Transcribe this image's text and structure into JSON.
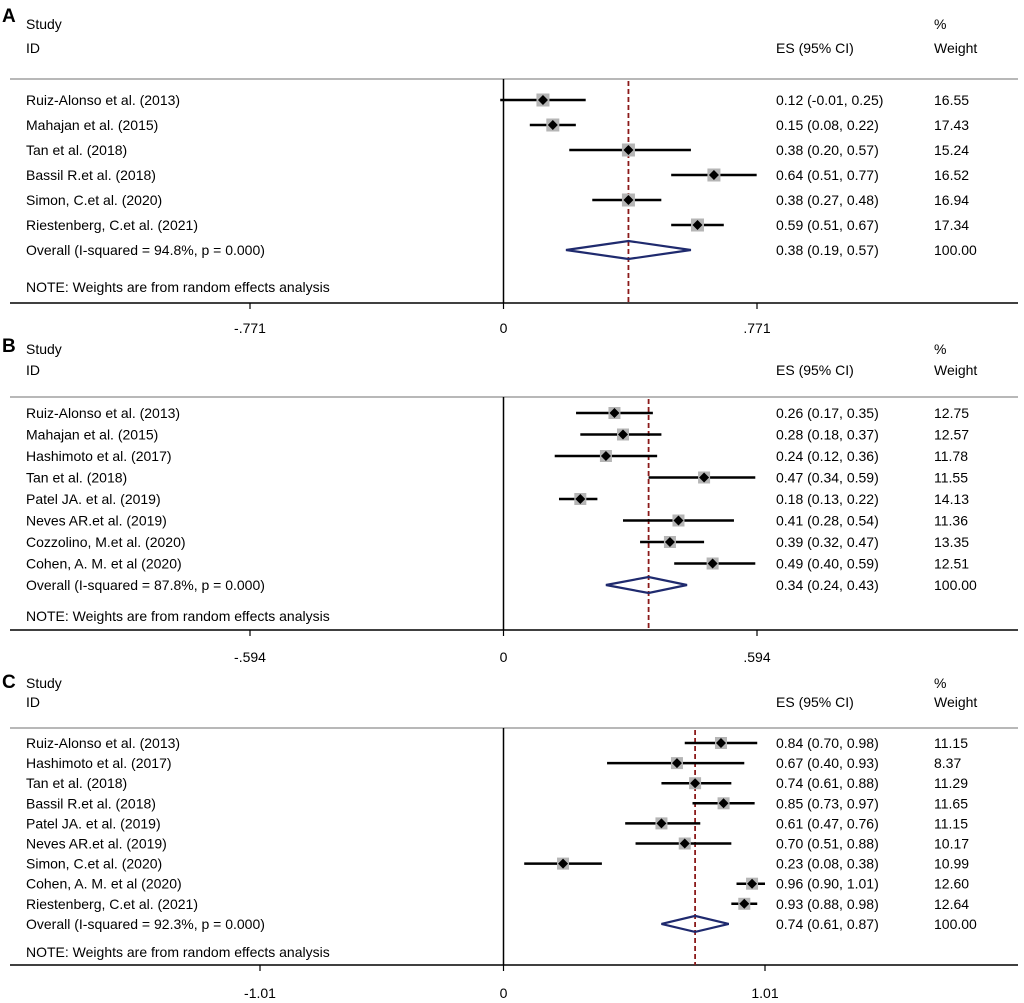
{
  "chart_data": [
    {
      "panel": "A",
      "type": "forest",
      "headers": {
        "study": "Study",
        "id": "ID",
        "es": "ES (95% CI)",
        "pct": "%",
        "weight": "Weight"
      },
      "xlim": [
        -0.771,
        0.771
      ],
      "ticks": [
        {
          "value": -0.771,
          "label": "-.771"
        },
        {
          "value": 0,
          "label": "0"
        },
        {
          "value": 0.771,
          "label": ".771"
        }
      ],
      "overall_line": 0.38,
      "studies": [
        {
          "label": "Ruiz-Alonso et al. (2013)",
          "es": 0.12,
          "lo": -0.01,
          "hi": 0.25,
          "es_text": "0.12 (-0.01, 0.25)",
          "weight": "16.55"
        },
        {
          "label": "Mahajan et al.  (2015)",
          "es": 0.15,
          "lo": 0.08,
          "hi": 0.22,
          "es_text": "0.15 (0.08, 0.22)",
          "weight": "17.43"
        },
        {
          "label": "Tan et al.  (2018)",
          "es": 0.38,
          "lo": 0.2,
          "hi": 0.57,
          "es_text": "0.38 (0.20, 0.57)",
          "weight": "15.24"
        },
        {
          "label": "Bassil R.et al. (2018)",
          "es": 0.64,
          "lo": 0.51,
          "hi": 0.77,
          "es_text": "0.64 (0.51, 0.77)",
          "weight": "16.52"
        },
        {
          "label": "Simon, C.et al. (2020)",
          "es": 0.38,
          "lo": 0.27,
          "hi": 0.48,
          "es_text": "0.38 (0.27, 0.48)",
          "weight": "16.94"
        },
        {
          "label": "Riestenberg, C.et al. (2021)",
          "es": 0.59,
          "lo": 0.51,
          "hi": 0.67,
          "es_text": "0.59 (0.51, 0.67)",
          "weight": "17.34"
        }
      ],
      "overall": {
        "label": "Overall  (I-squared = 94.8%, p = 0.000)",
        "es": 0.38,
        "lo": 0.19,
        "hi": 0.57,
        "es_text": "0.38 (0.19, 0.57)",
        "weight": "100.00"
      },
      "note": "NOTE: Weights are from random effects analysis"
    },
    {
      "panel": "B",
      "type": "forest",
      "headers": {
        "study": "Study",
        "id": "ID",
        "es": "ES (95% CI)",
        "pct": "%",
        "weight": "Weight"
      },
      "xlim": [
        -0.594,
        0.594
      ],
      "ticks": [
        {
          "value": -0.594,
          "label": "-.594"
        },
        {
          "value": 0,
          "label": "0"
        },
        {
          "value": 0.594,
          "label": ".594"
        }
      ],
      "overall_line": 0.34,
      "studies": [
        {
          "label": "Ruiz-Alonso et al. (2013)",
          "es": 0.26,
          "lo": 0.17,
          "hi": 0.35,
          "es_text": "0.26 (0.17, 0.35)",
          "weight": "12.75"
        },
        {
          "label": "Mahajan et al.  (2015)",
          "es": 0.28,
          "lo": 0.18,
          "hi": 0.37,
          "es_text": "0.28 (0.18, 0.37)",
          "weight": "12.57"
        },
        {
          "label": "Hashimoto et al. (2017)",
          "es": 0.24,
          "lo": 0.12,
          "hi": 0.36,
          "es_text": "0.24 (0.12, 0.36)",
          "weight": "11.78"
        },
        {
          "label": "Tan et al. (2018)",
          "es": 0.47,
          "lo": 0.34,
          "hi": 0.59,
          "es_text": "0.47 (0.34, 0.59)",
          "weight": "11.55"
        },
        {
          "label": "Patel JA. et al. (2019)",
          "es": 0.18,
          "lo": 0.13,
          "hi": 0.22,
          "es_text": "0.18 (0.13, 0.22)",
          "weight": "14.13"
        },
        {
          "label": "Neves AR.et al. (2019)",
          "es": 0.41,
          "lo": 0.28,
          "hi": 0.54,
          "es_text": "0.41 (0.28, 0.54)",
          "weight": "11.36"
        },
        {
          "label": "Cozzolino, M.et al. (2020)",
          "es": 0.39,
          "lo": 0.32,
          "hi": 0.47,
          "es_text": "0.39 (0.32, 0.47)",
          "weight": "13.35"
        },
        {
          "label": "Cohen, A. M. et al (2020)",
          "es": 0.49,
          "lo": 0.4,
          "hi": 0.59,
          "es_text": "0.49 (0.40, 0.59)",
          "weight": "12.51"
        }
      ],
      "overall": {
        "label": "Overall  (I-squared = 87.8%, p = 0.000)",
        "es": 0.34,
        "lo": 0.24,
        "hi": 0.43,
        "es_text": "0.34 (0.24, 0.43)",
        "weight": "100.00"
      },
      "note": "NOTE: Weights are from random effects analysis"
    },
    {
      "panel": "C",
      "type": "forest",
      "headers": {
        "study": "Study",
        "id": "ID",
        "es": "ES (95% CI)",
        "pct": "%",
        "weight": "Weight"
      },
      "xlim": [
        -1.01,
        1.01
      ],
      "ticks": [
        {
          "value": -1.01,
          "label": "-1.01"
        },
        {
          "value": 0,
          "label": "0"
        },
        {
          "value": 1.01,
          "label": "1.01"
        }
      ],
      "overall_line": 0.74,
      "studies": [
        {
          "label": "Ruiz-Alonso et al. (2013)",
          "es": 0.84,
          "lo": 0.7,
          "hi": 0.98,
          "es_text": "0.84 (0.70, 0.98)",
          "weight": "11.15"
        },
        {
          "label": "Hashimoto et al. (2017)",
          "es": 0.67,
          "lo": 0.4,
          "hi": 0.93,
          "es_text": "0.67 (0.40, 0.93)",
          "weight": "8.37"
        },
        {
          "label": "Tan et al. (2018)",
          "es": 0.74,
          "lo": 0.61,
          "hi": 0.88,
          "es_text": "0.74 (0.61, 0.88)",
          "weight": "11.29"
        },
        {
          "label": "Bassil R.et al. (2018)",
          "es": 0.85,
          "lo": 0.73,
          "hi": 0.97,
          "es_text": "0.85 (0.73, 0.97)",
          "weight": "11.65"
        },
        {
          "label": "Patel JA. et al. (2019)",
          "es": 0.61,
          "lo": 0.47,
          "hi": 0.76,
          "es_text": "0.61 (0.47, 0.76)",
          "weight": "11.15"
        },
        {
          "label": "Neves AR.et al. (2019)",
          "es": 0.7,
          "lo": 0.51,
          "hi": 0.88,
          "es_text": "0.70 (0.51, 0.88)",
          "weight": "10.17"
        },
        {
          "label": "Simon, C.et al. (2020)",
          "es": 0.23,
          "lo": 0.08,
          "hi": 0.38,
          "es_text": "0.23 (0.08, 0.38)",
          "weight": "10.99"
        },
        {
          "label": "Cohen, A. M. et al (2020)",
          "es": 0.96,
          "lo": 0.9,
          "hi": 1.01,
          "es_text": "0.96 (0.90, 1.01)",
          "weight": "12.60"
        },
        {
          "label": "Riestenberg, C.et al. (2021)",
          "es": 0.93,
          "lo": 0.88,
          "hi": 0.98,
          "es_text": "0.93 (0.88, 0.98)",
          "weight": "12.64"
        }
      ],
      "overall": {
        "label": "Overall  (I-squared = 92.3%, p = 0.000)",
        "es": 0.74,
        "lo": 0.61,
        "hi": 0.87,
        "es_text": "0.74 (0.61, 0.87)",
        "weight": "100.00"
      },
      "note": "NOTE: Weights are from random effects analysis"
    }
  ],
  "colors": {
    "marker_box": "#b5b5b5",
    "overall_line": "#8b1a1a",
    "diamond": "#1f2a6e",
    "separator": "#b8b8b8"
  }
}
